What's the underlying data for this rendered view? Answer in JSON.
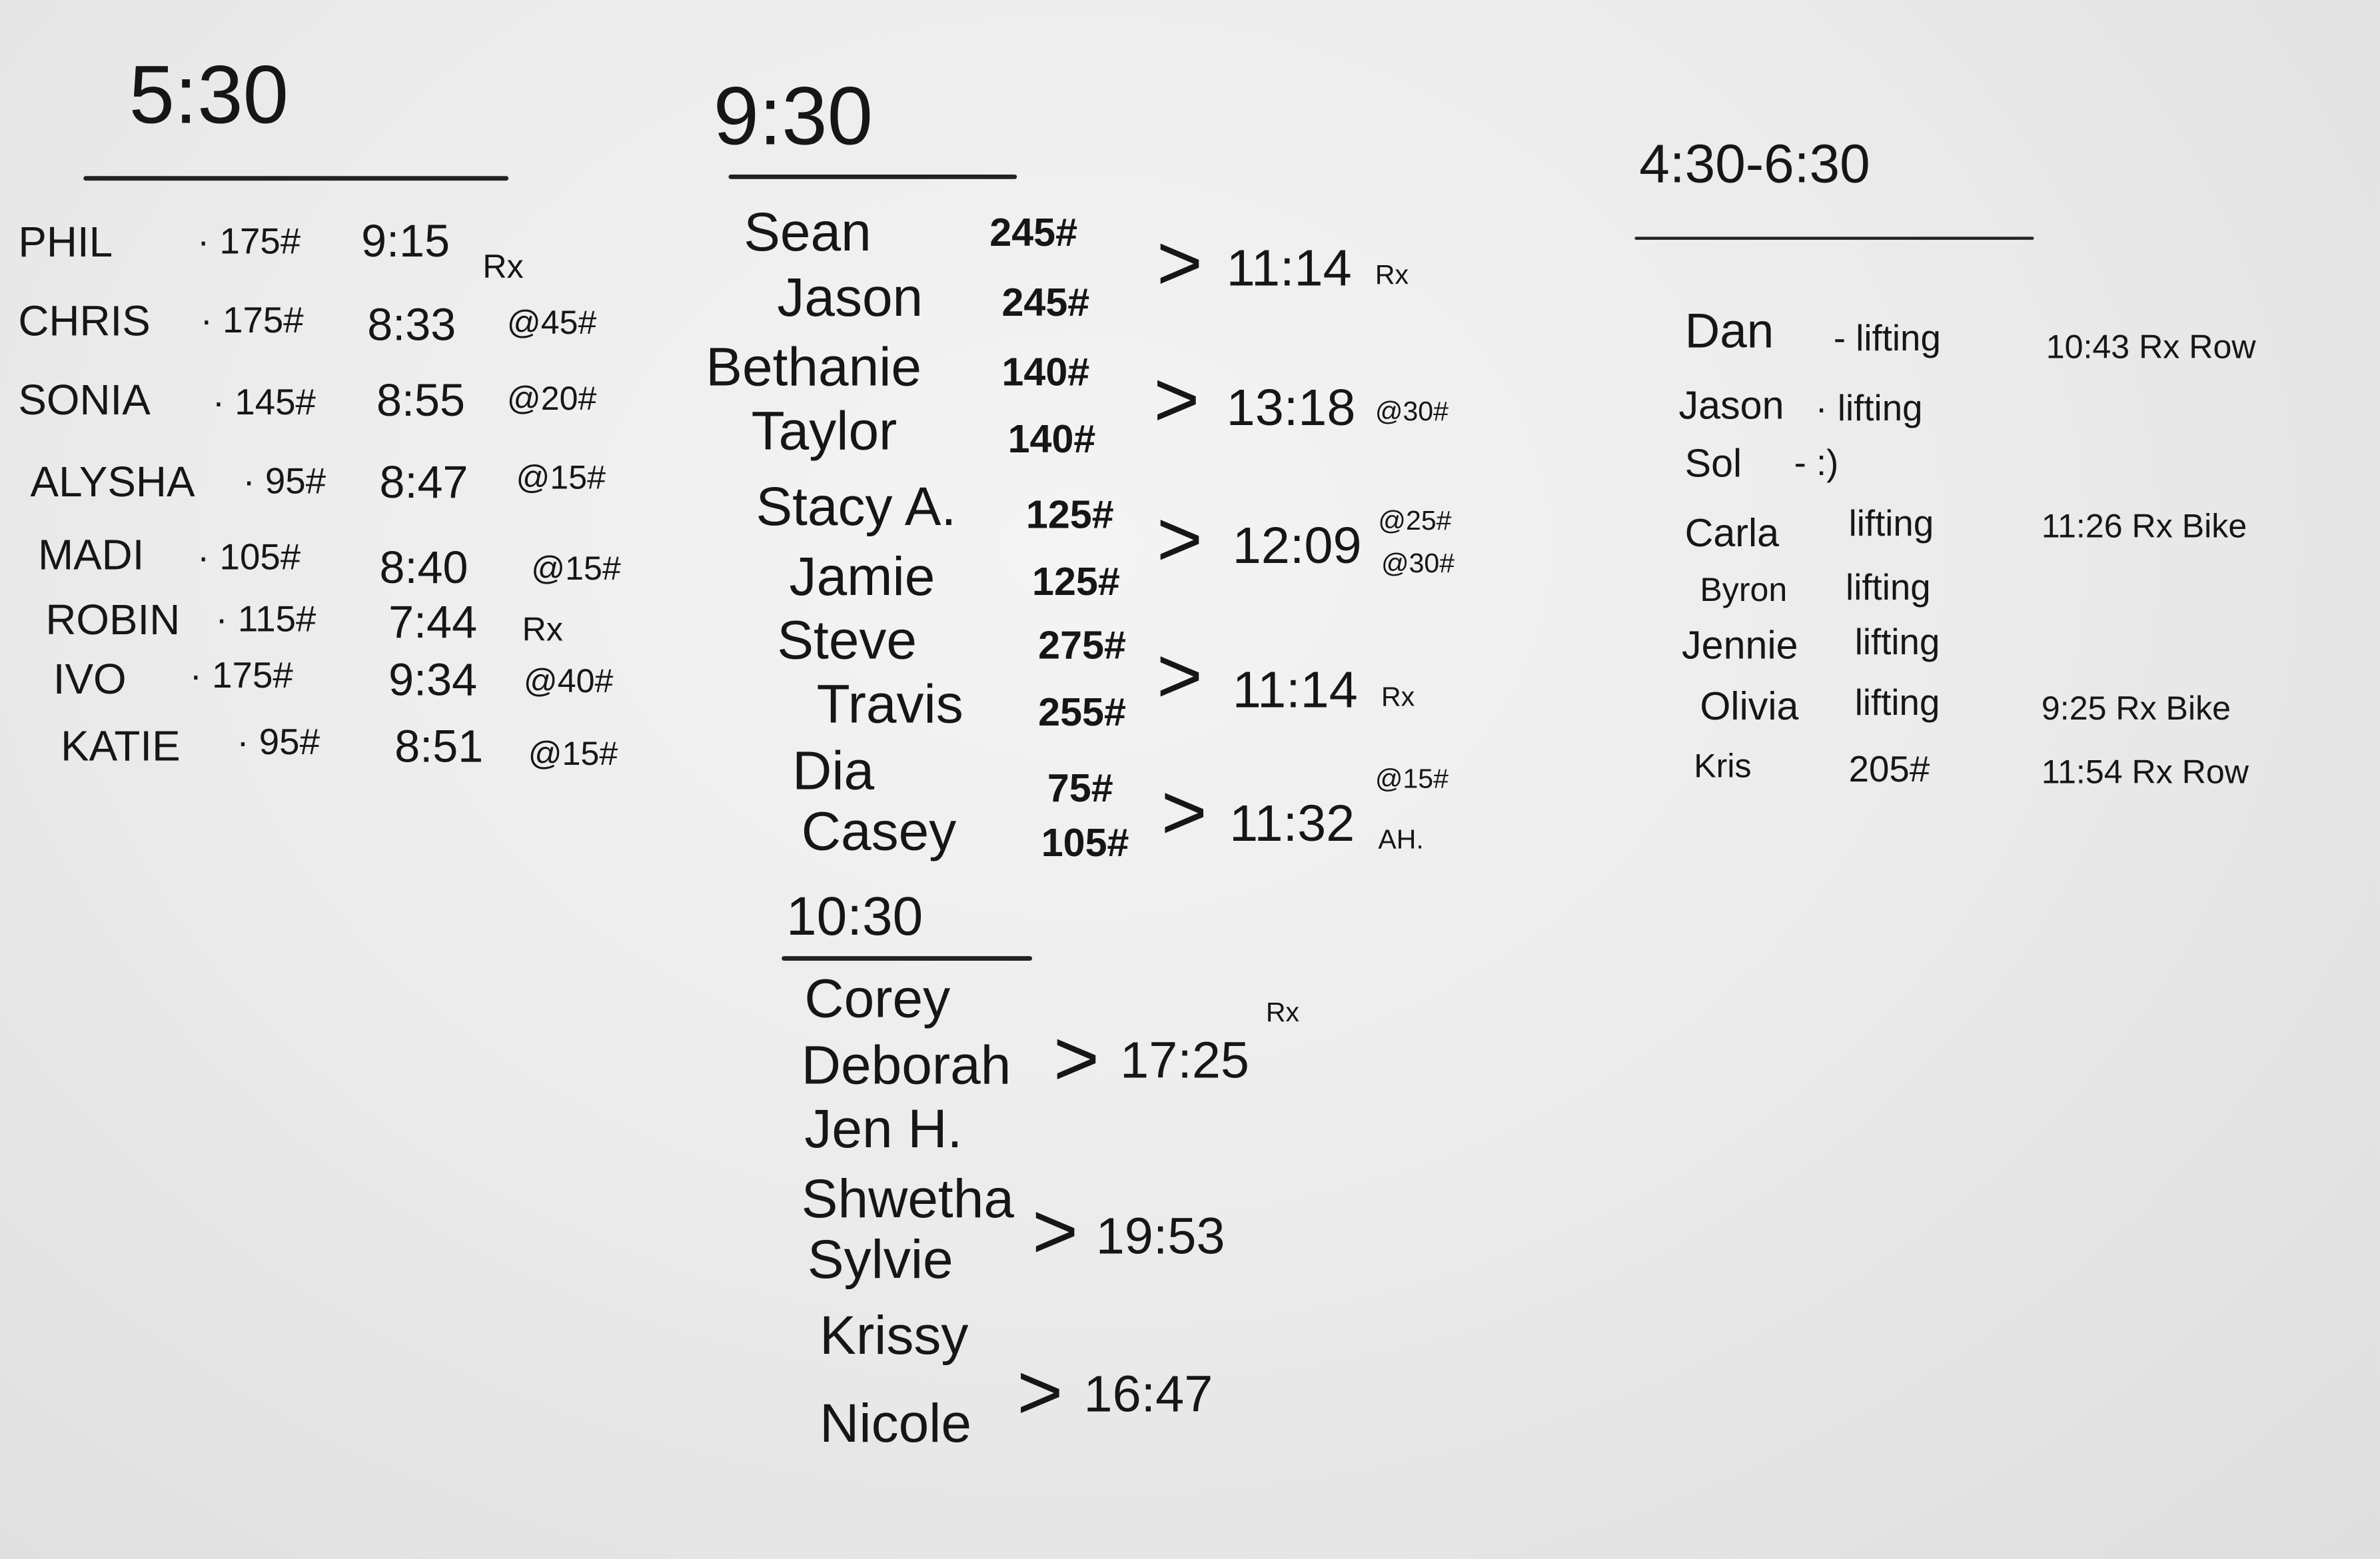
{
  "session_530": {
    "title": "5:30",
    "rows": [
      {
        "name": "PHIL",
        "weight": "· 175#",
        "time": "9:15",
        "note": "Rx"
      },
      {
        "name": "CHRIS",
        "weight": "· 175#",
        "time": "8:33",
        "note": "@45#"
      },
      {
        "name": "SONIA",
        "weight": "· 145#",
        "time": "8:55",
        "note": "@20#"
      },
      {
        "name": "ALYSHA",
        "weight": "· 95#",
        "time": "8:47",
        "note": "@15#"
      },
      {
        "name": "MADI",
        "weight": "· 105#",
        "time": "8:40",
        "note": "@15#"
      },
      {
        "name": "ROBIN",
        "weight": "· 115#",
        "time": "7:44",
        "note": "Rx"
      },
      {
        "name": "IVO",
        "weight": "· 175#",
        "time": "9:34",
        "note": "@40#"
      },
      {
        "name": "KATIE",
        "weight": "· 95#",
        "time": "8:51",
        "note": "@15#"
      }
    ]
  },
  "session_930": {
    "title": "9:30",
    "teams": [
      {
        "names": [
          "Sean",
          "Jason"
        ],
        "weights": [
          "245#",
          "245#"
        ],
        "bracket": ">",
        "time": "11:14",
        "note": "Rx",
        "note2": ""
      },
      {
        "names": [
          "Bethanie",
          "Taylor"
        ],
        "weights": [
          "140#",
          "140#"
        ],
        "bracket": ">",
        "time": "13:18",
        "note": "@30#",
        "note2": ""
      },
      {
        "names": [
          "Stacy A.",
          "Jamie"
        ],
        "weights": [
          "125#",
          "125#"
        ],
        "bracket": ">",
        "time": "12:09",
        "note": "@25#",
        "note2": "@30#"
      },
      {
        "names": [
          "Steve",
          "Travis"
        ],
        "weights": [
          "275#",
          "255#"
        ],
        "bracket": ">",
        "time": "11:14",
        "note": "Rx",
        "note2": ""
      },
      {
        "names": [
          "Dia",
          "Casey"
        ],
        "weights": [
          "75#",
          "105#"
        ],
        "bracket": ">",
        "time": "11:32",
        "note": "@15#",
        "note2": "AH."
      }
    ]
  },
  "session_1030": {
    "title": "10:30",
    "names": [
      "Corey",
      "Deborah",
      "Jen H.",
      "Shwetha",
      "Sylvie",
      "Krissy",
      "Nicole"
    ],
    "results": [
      {
        "bracket": ">",
        "time": "17:25",
        "note": "Rx"
      },
      {
        "bracket": ">",
        "time": "19:53",
        "note": ""
      },
      {
        "bracket": ">",
        "time": "16:47",
        "note": ""
      }
    ]
  },
  "session_430_630": {
    "title": "4:30-6:30",
    "rows": [
      {
        "name": "Dan",
        "activity": "- lifting",
        "result": "10:43 Rx Row"
      },
      {
        "name": "Jason",
        "activity": "· lifting",
        "result": ""
      },
      {
        "name": "Sol",
        "activity": "- :)",
        "result": ""
      },
      {
        "name": "Carla",
        "activity": "lifting",
        "result": "11:26 Rx Bike"
      },
      {
        "name": "Byron",
        "activity": "lifting",
        "result": ""
      },
      {
        "name": "Jennie",
        "activity": "lifting",
        "result": ""
      },
      {
        "name": "Olivia",
        "activity": "lifting",
        "result": "9:25 Rx Bike"
      },
      {
        "name": "Kris",
        "activity": "205#",
        "result": "11:54 Rx Row"
      }
    ]
  },
  "colors": {
    "ink": "#161616",
    "board": "#ececec"
  }
}
